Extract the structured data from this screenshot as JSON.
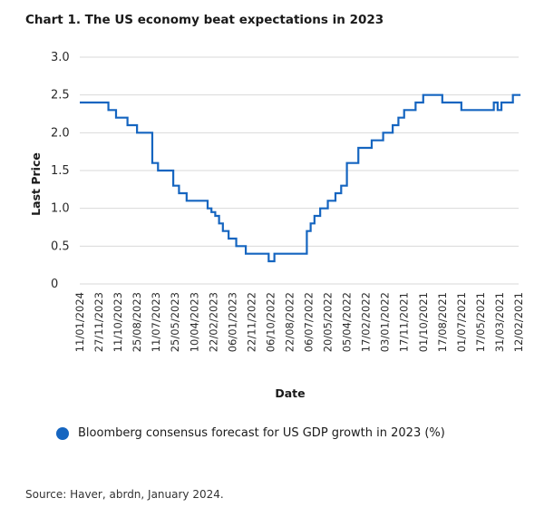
{
  "chart_data": {
    "type": "line",
    "title": "Chart 1. The US economy beat expectations in 2023",
    "xlabel": "Date",
    "ylabel": "Last Price",
    "ylim": [
      0,
      3.0
    ],
    "yticks": [
      0,
      0.5,
      1.0,
      1.5,
      2.0,
      2.5,
      3.0
    ],
    "ytick_labels": [
      "0",
      "0.5",
      "1.0",
      "1.5",
      "2.0",
      "2.5",
      "3.0"
    ],
    "xtick_labels": [
      "11/01/2024",
      "27/11/2023",
      "11/10/2023",
      "25/08/2023",
      "11/07/2023",
      "25/05/2023",
      "10/04/2023",
      "22/02/2023",
      "06/01/2023",
      "22/11/2022",
      "06/10/2022",
      "22/08/2022",
      "06/07/2022",
      "20/05/2022",
      "05/04/2022",
      "17/02/2022",
      "03/01/2022",
      "17/11/2021",
      "01/10/2021",
      "17/08/2021",
      "01/07/2021",
      "17/05/2021",
      "31/03/2021",
      "12/02/2021"
    ],
    "grid": "horizontal",
    "legend_position": "bottom",
    "series": [
      {
        "name": "Bloomberg consensus forecast for US GDP growth in 2023 (%)",
        "color": "#1565c0",
        "step": true,
        "x": [
          0,
          1.0,
          1.5,
          1.9,
          2.5,
          3.0,
          3.5,
          3.8,
          4.1,
          4.9,
          5.2,
          5.6,
          5.9,
          6.2,
          6.4,
          6.7,
          6.9,
          7.1,
          7.3,
          7.5,
          7.8,
          8.2,
          8.7,
          9.9,
          10.2,
          10.4,
          10.6,
          10.8,
          11.0,
          11.2,
          11.5,
          11.9,
          12.1,
          12.3,
          12.6,
          13.0,
          13.4,
          13.7,
          14.0,
          14.6,
          15.3,
          15.9,
          16.4,
          16.7,
          17.0,
          17.6,
          18.0,
          18.1,
          18.5,
          19.0,
          19.4,
          20.0,
          20.3,
          21.0,
          21.5,
          21.7,
          21.9,
          22.1,
          22.4,
          22.7,
          23.1
        ],
        "y": [
          2.4,
          2.4,
          2.3,
          2.2,
          2.1,
          2.0,
          2.0,
          1.6,
          1.5,
          1.3,
          1.2,
          1.1,
          1.1,
          1.1,
          1.1,
          1.0,
          0.95,
          0.9,
          0.8,
          0.7,
          0.6,
          0.5,
          0.4,
          0.3,
          0.4,
          0.4,
          0.4,
          0.4,
          0.4,
          0.4,
          0.4,
          0.7,
          0.8,
          0.9,
          1.0,
          1.1,
          1.2,
          1.3,
          1.6,
          1.8,
          1.9,
          2.0,
          2.1,
          2.2,
          2.3,
          2.4,
          2.5,
          2.5,
          2.5,
          2.4,
          2.4,
          2.3,
          2.3,
          2.3,
          2.3,
          2.4,
          2.3,
          2.4,
          2.4,
          2.5,
          2.5
        ]
      }
    ]
  },
  "legend": {
    "label": "Bloomberg consensus forecast for US GDP growth in 2023 (%)",
    "color": "#1565c0"
  },
  "source": "Source: Haver, abrdn, January 2024."
}
